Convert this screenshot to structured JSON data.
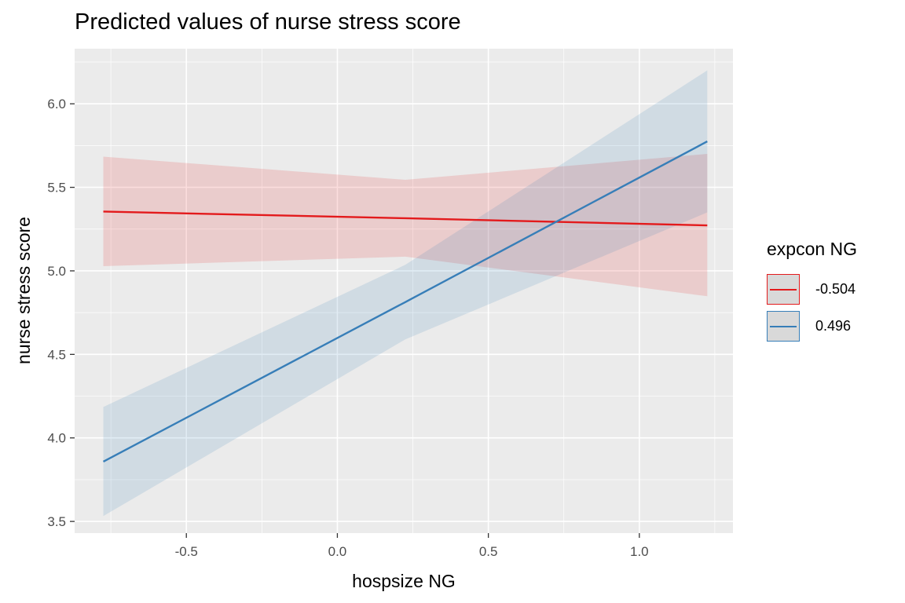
{
  "chart_data": {
    "type": "line",
    "title": "Predicted values of nurse stress score",
    "xlabel": "hospsize NG",
    "ylabel": "nurse stress score",
    "xlim": [
      -0.87,
      1.31
    ],
    "ylim": [
      3.43,
      6.33
    ],
    "x_ticks": [
      -0.5,
      0.0,
      0.5,
      1.0
    ],
    "x_tick_labels": [
      "-0.5",
      "0.0",
      "0.5",
      "1.0"
    ],
    "y_ticks": [
      3.5,
      4.0,
      4.5,
      5.0,
      5.5,
      6.0
    ],
    "y_tick_labels": [
      "3.5",
      "4.0",
      "4.5",
      "5.0",
      "5.5",
      "6.0"
    ],
    "grid": true,
    "legend": {
      "title": "expcon NG",
      "position": "right"
    },
    "series": [
      {
        "name": "-0.504",
        "color": "#e31a1c",
        "x": [
          -0.775,
          0.225,
          1.225
        ],
        "y": [
          5.355,
          5.315,
          5.272
        ],
        "ci_lower": [
          5.028,
          5.085,
          4.848
        ],
        "ci_upper": [
          5.684,
          5.545,
          5.7
        ]
      },
      {
        "name": "0.496",
        "color": "#377eb8",
        "x": [
          -0.775,
          0.225,
          1.225
        ],
        "y": [
          3.858,
          4.813,
          5.775
        ],
        "ci_lower": [
          3.532,
          4.59,
          5.35
        ],
        "ci_upper": [
          4.185,
          5.036,
          6.2
        ]
      }
    ]
  }
}
